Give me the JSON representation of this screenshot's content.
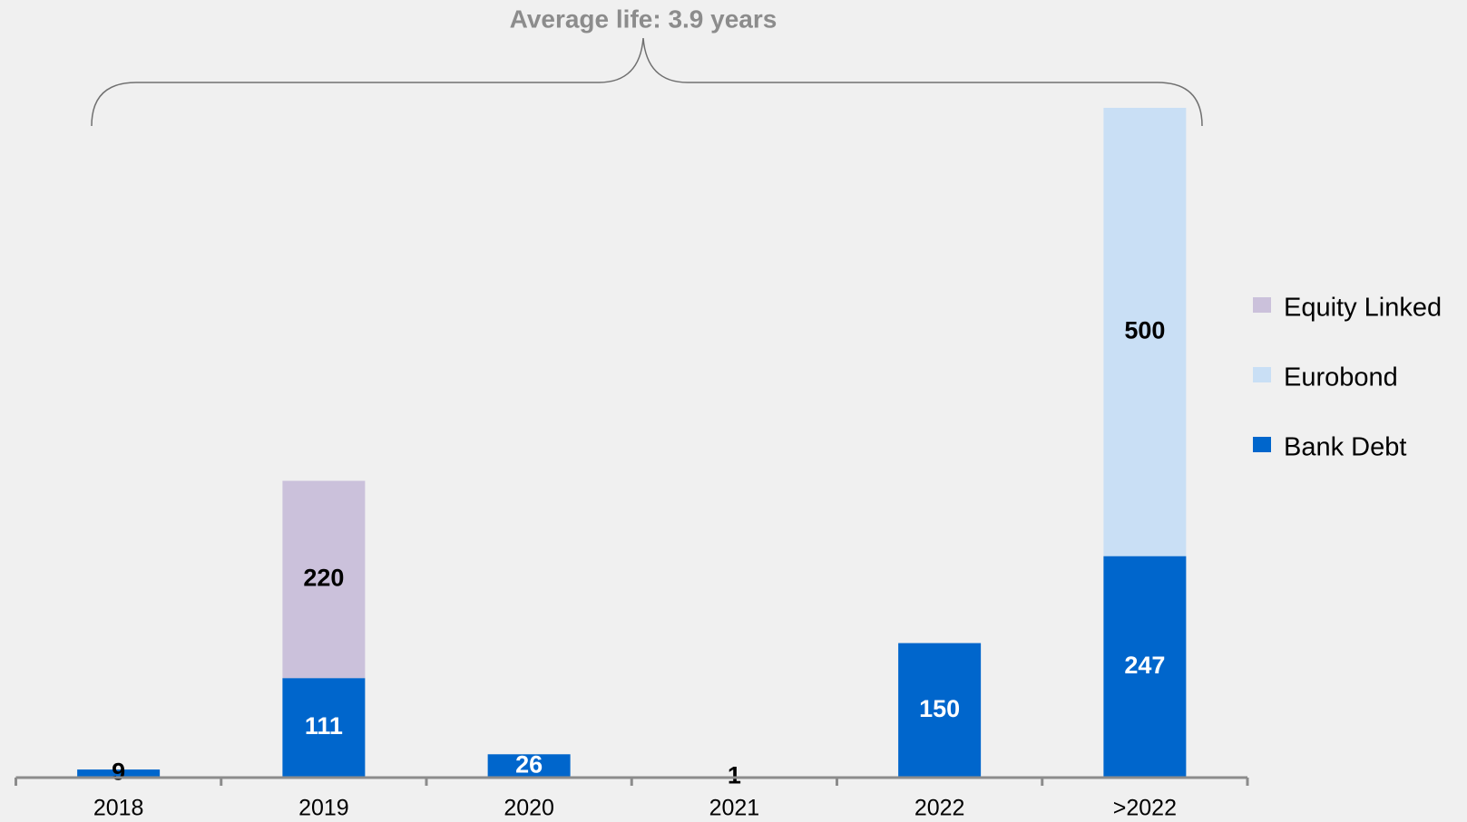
{
  "chart_data": {
    "type": "bar",
    "stacked": true,
    "annotation": "Average life: 3.9 years",
    "categories": [
      "2018",
      "2019",
      "2020",
      "2021",
      "2022",
      ">2022"
    ],
    "series": [
      {
        "name": "Bank Debt",
        "color": "#0066cc",
        "values": [
          9,
          111,
          26,
          1,
          150,
          247
        ]
      },
      {
        "name": "Eurobond",
        "color": "#c9dff5",
        "values": [
          null,
          null,
          null,
          null,
          null,
          500
        ]
      },
      {
        "name": "Equity Linked",
        "color": "#cbc1db",
        "values": [
          null,
          220,
          null,
          null,
          null,
          null
        ]
      }
    ],
    "ylim": [
      0,
      750
    ],
    "grid": false
  }
}
